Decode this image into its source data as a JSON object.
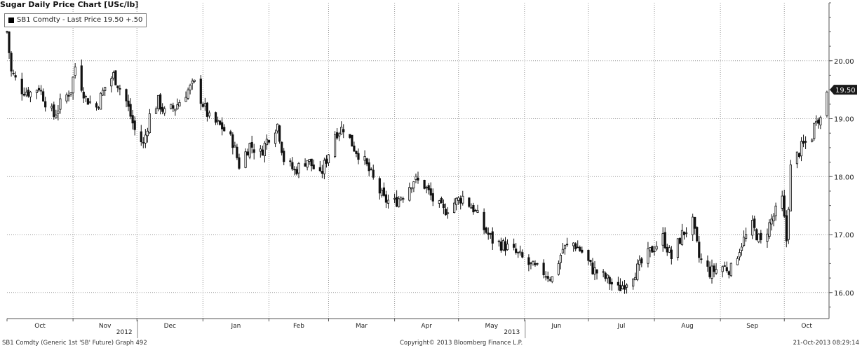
{
  "header": {
    "title": "Sugar Daily Price Chart [USc/lb]"
  },
  "legend": {
    "label": "SB1 Comdty - Last Price 19.50 +.50"
  },
  "footer": {
    "left": "SB1 Comdty (Generic 1st 'SB' Future) Graph 492",
    "center": "Copyright© 2013 Bloomberg Finance L.P.",
    "right": "21-Oct-2013 08:29:14"
  },
  "chart_data": {
    "type": "candlestick",
    "ylim": [
      15.55,
      21.0
    ],
    "y_ticks": [
      16.0,
      17.0,
      18.0,
      19.0,
      20.0
    ],
    "y_tick_labels": [
      "16.00",
      "17.00",
      "18.00",
      "19.00",
      "20.00"
    ],
    "last_price_label": "19.50",
    "last_price": 19.5,
    "grid": true,
    "x_tick_labels": [
      "Oct",
      "Nov",
      "Dec",
      "Jan",
      "Feb",
      "Mar",
      "Apr",
      "May",
      "Jun",
      "Jul",
      "Aug",
      "Sep",
      "Oct"
    ],
    "year_labels": [
      {
        "label": "2012",
        "after_month": "Nov"
      },
      {
        "label": "2013",
        "after_month": "May"
      }
    ],
    "x_range": [
      "2012-10-01",
      "2013-10-22"
    ],
    "control_points": [
      [
        "2012-10-01",
        20.5
      ],
      [
        "2012-10-03",
        19.8
      ],
      [
        "2012-10-08",
        19.5
      ],
      [
        "2012-10-12",
        19.45
      ],
      [
        "2012-10-16",
        19.55
      ],
      [
        "2012-10-19",
        19.3
      ],
      [
        "2012-10-23",
        19.05
      ],
      [
        "2012-10-26",
        19.25
      ],
      [
        "2012-10-31",
        19.5
      ],
      [
        "2012-11-02",
        19.9
      ],
      [
        "2012-11-07",
        19.35
      ],
      [
        "2012-11-12",
        19.2
      ],
      [
        "2012-11-16",
        19.55
      ],
      [
        "2012-11-20",
        19.75
      ],
      [
        "2012-11-26",
        19.3
      ],
      [
        "2012-11-30",
        18.8
      ],
      [
        "2012-12-04",
        18.55
      ],
      [
        "2012-12-07",
        19.05
      ],
      [
        "2012-12-11",
        19.3
      ],
      [
        "2012-12-14",
        19.1
      ],
      [
        "2012-12-19",
        19.2
      ],
      [
        "2012-12-24",
        19.45
      ],
      [
        "2012-12-28",
        19.6
      ],
      [
        "2013-01-04",
        19.0
      ],
      [
        "2013-01-10",
        18.85
      ],
      [
        "2013-01-15",
        18.6
      ],
      [
        "2013-01-18",
        18.2
      ],
      [
        "2013-01-23",
        18.55
      ],
      [
        "2013-01-28",
        18.4
      ],
      [
        "2013-02-01",
        18.7
      ],
      [
        "2013-02-05",
        18.9
      ],
      [
        "2013-02-08",
        18.3
      ],
      [
        "2013-02-13",
        18.1
      ],
      [
        "2013-02-19",
        18.3
      ],
      [
        "2013-02-25",
        18.0
      ],
      [
        "2013-02-28",
        18.3
      ],
      [
        "2013-03-04",
        18.75
      ],
      [
        "2013-03-08",
        18.85
      ],
      [
        "2013-03-13",
        18.5
      ],
      [
        "2013-03-18",
        18.25
      ],
      [
        "2013-03-22",
        17.95
      ],
      [
        "2013-03-27",
        17.6
      ],
      [
        "2013-04-01",
        17.55
      ],
      [
        "2013-04-05",
        17.7
      ],
      [
        "2013-04-10",
        17.95
      ],
      [
        "2013-04-15",
        17.85
      ],
      [
        "2013-04-19",
        17.6
      ],
      [
        "2013-04-24",
        17.4
      ],
      [
        "2013-04-29",
        17.55
      ],
      [
        "2013-05-03",
        17.65
      ],
      [
        "2013-05-08",
        17.45
      ],
      [
        "2013-05-13",
        17.1
      ],
      [
        "2013-05-17",
        16.9
      ],
      [
        "2013-05-23",
        16.8
      ],
      [
        "2013-05-29",
        16.65
      ],
      [
        "2013-06-04",
        16.45
      ],
      [
        "2013-06-10",
        16.35
      ],
      [
        "2013-06-14",
        16.25
      ],
      [
        "2013-06-19",
        16.75
      ],
      [
        "2013-06-24",
        16.85
      ],
      [
        "2013-06-28",
        16.7
      ],
      [
        "2013-07-03",
        16.4
      ],
      [
        "2013-07-09",
        16.25
      ],
      [
        "2013-07-15",
        16.05
      ],
      [
        "2013-07-19",
        16.2
      ],
      [
        "2013-07-25",
        16.45
      ],
      [
        "2013-07-31",
        16.75
      ],
      [
        "2013-08-05",
        16.95
      ],
      [
        "2013-08-09",
        16.6
      ],
      [
        "2013-08-14",
        17.0
      ],
      [
        "2013-08-19",
        17.2
      ],
      [
        "2013-08-22",
        16.6
      ],
      [
        "2013-08-27",
        16.35
      ],
      [
        "2013-09-02",
        16.45
      ],
      [
        "2013-09-06",
        16.4
      ],
      [
        "2013-09-11",
        16.85
      ],
      [
        "2013-09-16",
        17.15
      ],
      [
        "2013-09-20",
        16.85
      ],
      [
        "2013-09-25",
        17.25
      ],
      [
        "2013-09-30",
        17.6
      ],
      [
        "2013-10-02",
        16.9
      ],
      [
        "2013-10-04",
        18.15
      ],
      [
        "2013-10-09",
        18.5
      ],
      [
        "2013-10-14",
        18.7
      ],
      [
        "2013-10-16",
        19.05
      ],
      [
        "2013-10-18",
        19.0
      ],
      [
        "2013-10-21",
        19.5
      ]
    ],
    "colors": {
      "candle": "#111111",
      "grid": "#9a9a9a",
      "axis_text": "#222222",
      "last_price_box": "#1a1a1a",
      "last_price_text": "#ffffff"
    }
  }
}
